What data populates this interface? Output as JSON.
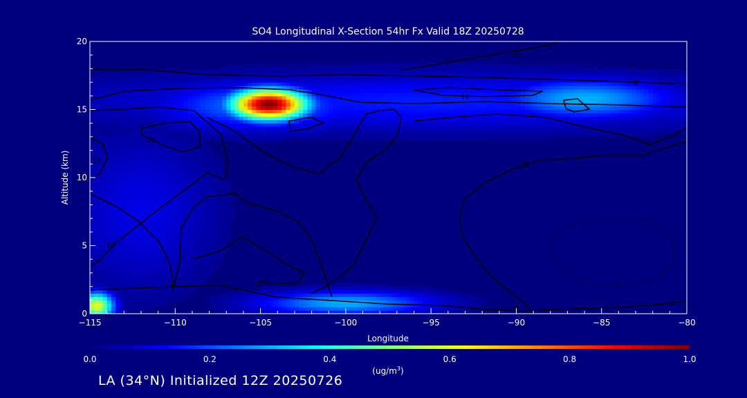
{
  "chart_data": {
    "type": "heatmap",
    "title": "SO4 Longitudinal X-Section 54hr  Fx Valid 18Z 20250728",
    "xlabel": "Longitude",
    "ylabel": "Altitude (km)",
    "xlim": [
      -115,
      -80
    ],
    "ylim": [
      0,
      20
    ],
    "x_ticks": [
      -115,
      -110,
      -105,
      -100,
      -95,
      -90,
      -85,
      -80
    ],
    "x_tick_labels": [
      "−115",
      "−110",
      "−105",
      "−100",
      "−95",
      "−90",
      "−85",
      "−80"
    ],
    "y_ticks": [
      0,
      5,
      10,
      15,
      20
    ],
    "y_tick_labels": [
      "0",
      "5",
      "10",
      "15",
      "20"
    ],
    "colorbar": {
      "min": 0.0,
      "max": 1.0,
      "tick_labels": [
        "0.0",
        "0.2",
        "0.4",
        "0.6",
        "0.8",
        "1.0"
      ],
      "unit_label": "(ug/m",
      "unit_superscript": "3",
      "unit_suffix": ")",
      "colormap": [
        "#00007f",
        "#0000ff",
        "#0080ff",
        "#00ffff",
        "#80ff80",
        "#ffff00",
        "#ff8000",
        "#ff0000",
        "#800000"
      ]
    },
    "concentration_features": [
      {
        "lon": -104.5,
        "alt": 15.4,
        "value": 1.0,
        "sx": 1.6,
        "sy": 0.8
      },
      {
        "lon": -105.0,
        "alt": 15.3,
        "value": 0.25,
        "sx": 4.0,
        "sy": 1.2
      },
      {
        "lon": -86.0,
        "alt": 15.8,
        "value": 0.3,
        "sx": 3.5,
        "sy": 1.0
      },
      {
        "lon": -95.0,
        "alt": 15.6,
        "value": 0.15,
        "sx": 14.0,
        "sy": 1.4
      },
      {
        "lon": -114.6,
        "alt": 0.6,
        "value": 0.6,
        "sx": 0.7,
        "sy": 0.7
      },
      {
        "lon": -100.0,
        "alt": 0.8,
        "value": 0.3,
        "sx": 3.5,
        "sy": 0.6
      },
      {
        "lon": -112.0,
        "alt": 7.5,
        "value": 0.1,
        "sx": 3.0,
        "sy": 4.0
      }
    ],
    "contour_labels": [
      {
        "text": "0",
        "lon": -90.0,
        "alt": 19.0
      },
      {
        "text": "0",
        "lon": -83.0,
        "alt": 17.0
      },
      {
        "text": "10",
        "lon": -93.0,
        "alt": 16.0
      },
      {
        "text": "20",
        "lon": -111.4,
        "alt": 12.8
      },
      {
        "text": "10",
        "lon": -114.6,
        "alt": 11.3
      },
      {
        "text": "0",
        "lon": -99.2,
        "alt": 13.4
      },
      {
        "text": "10",
        "lon": -89.5,
        "alt": 11.0
      },
      {
        "text": "10",
        "lon": -113.8,
        "alt": 5.1
      },
      {
        "text": "0",
        "lon": -90.0,
        "alt": 0.5
      },
      {
        "text": "0",
        "lon": -80.8,
        "alt": 0.8
      }
    ]
  },
  "footer": {
    "caption": "LA (34°N) Initialized 12Z 20250726"
  }
}
